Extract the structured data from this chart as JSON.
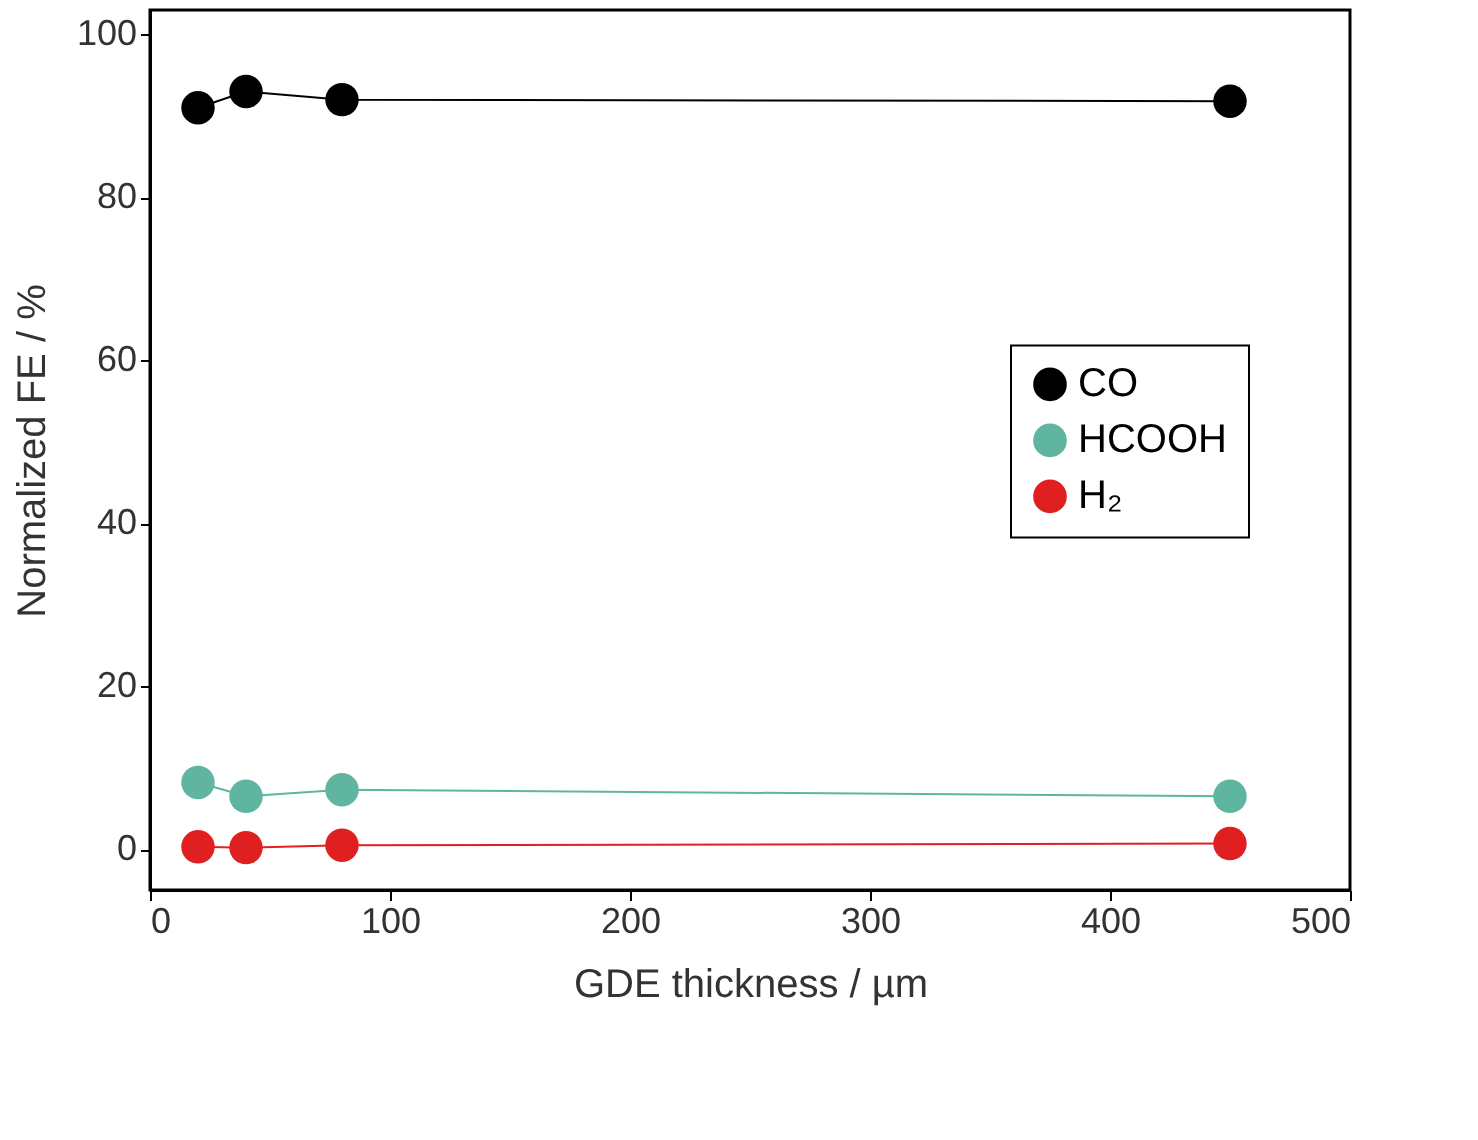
{
  "chart_data": {
    "type": "line",
    "xlabel": "GDE thickness / µm",
    "ylabel": "Normalized FE / %",
    "x": [
      20,
      40,
      80,
      450
    ],
    "series": [
      {
        "name": "CO",
        "color": "#000000",
        "values": [
          91,
          93,
          92,
          91.8
        ]
      },
      {
        "name": "HCOOH",
        "color": "#5fb5a0",
        "values": [
          8.2,
          6.5,
          7.3,
          6.5
        ]
      },
      {
        "name": "H₂",
        "color": "#e02020",
        "values": [
          0.3,
          0.2,
          0.5,
          0.7
        ]
      }
    ],
    "xlim": [
      0,
      500
    ],
    "xticks": [
      0,
      100,
      200,
      300,
      400,
      500
    ],
    "ylim": [
      -5,
      103
    ],
    "yticks": [
      0,
      20,
      40,
      60,
      80,
      100
    ],
    "marker": "circle",
    "line_style": "solid",
    "legend": "right",
    "grid": false
  }
}
